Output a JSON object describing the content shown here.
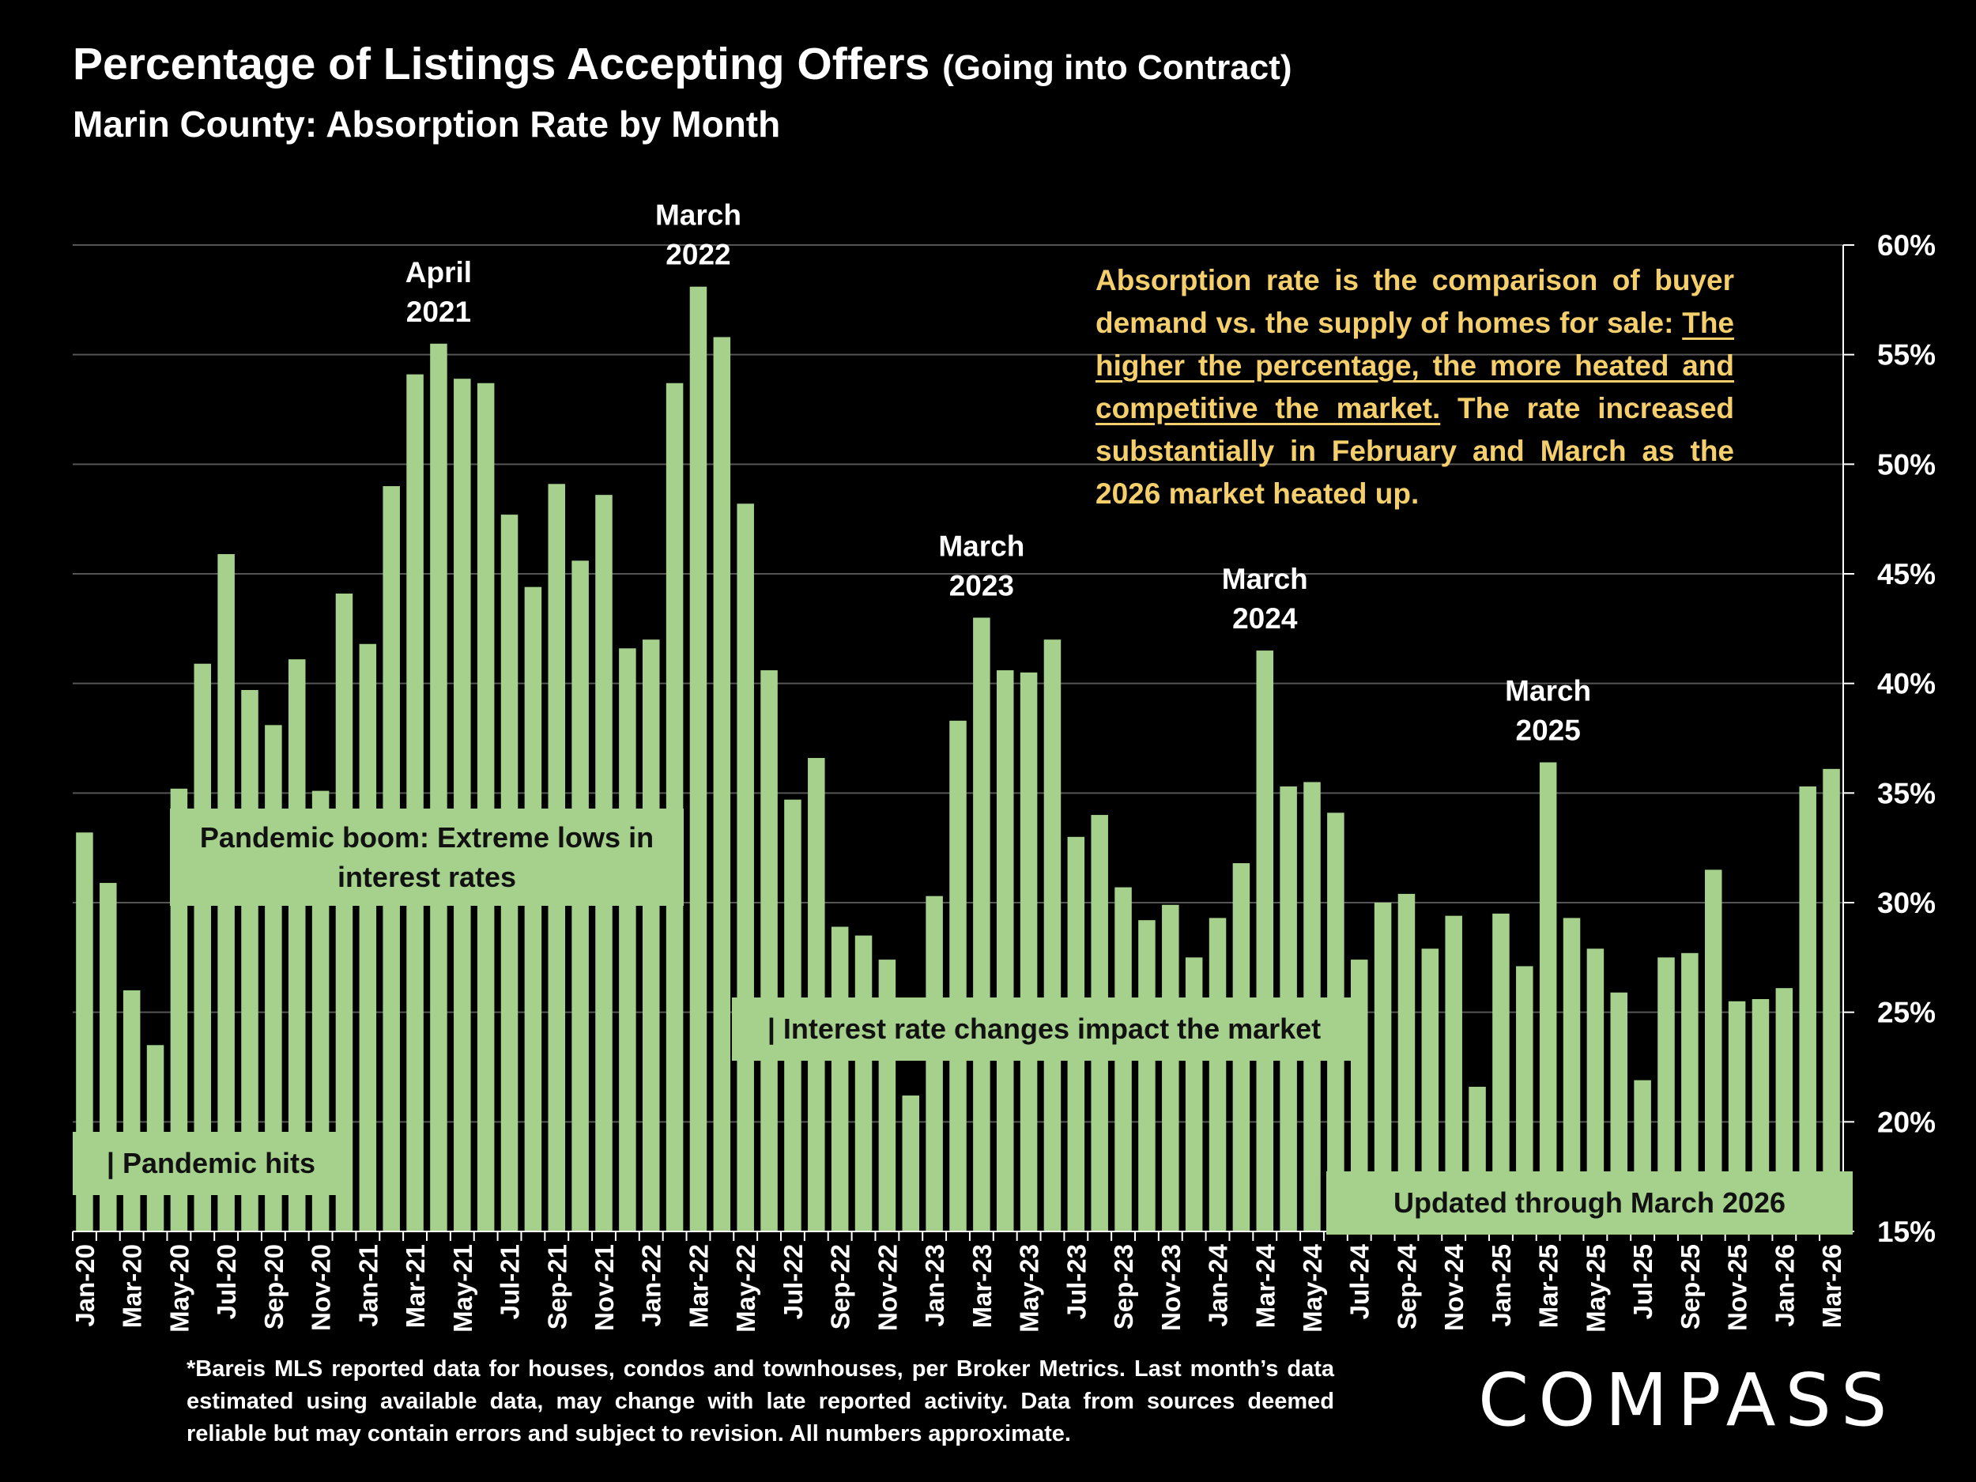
{
  "header": {
    "title_main": "Percentage of Listings Accepting Offers",
    "title_paren": "(Going into Contract)",
    "subtitle": "Marin County:  Absorption Rate by Month"
  },
  "note": {
    "part1": "Absorption rate is the comparison of buyer demand vs. the supply of homes for sale: ",
    "underlined": "The higher the percentage, the more heated and competitive the market.",
    "part2": " The rate increased substantially in February and March as the 2026 market heated up."
  },
  "callouts": {
    "pandemic_hits": "| Pandemic hits",
    "pandemic_boom": "Pandemic boom: Extreme lows in interest rates",
    "interest_rate": "| Interest rate changes impact the market",
    "updated": "Updated through March 2026"
  },
  "footnote": "*Bareis MLS reported data for houses, condos and townhouses, per Broker Metrics. Last month’s data estimated using available data, may change with late reported activity. Data from sources deemed reliable but may contain errors and subject to revision. All numbers approximate.",
  "logo": "COMPASS",
  "colors": {
    "bar": "#a6d18d",
    "note": "#f4cf6b",
    "background": "#000000",
    "grid": "#555555"
  },
  "chart_data": {
    "type": "bar",
    "title": "Percentage of Listings Accepting Offers (Going into Contract)",
    "subtitle": "Marin County: Absorption Rate by Month",
    "xlabel": "",
    "ylabel": "",
    "ylim": [
      15,
      60
    ],
    "yticks": [
      "15%",
      "20%",
      "25%",
      "30%",
      "35%",
      "40%",
      "45%",
      "50%",
      "55%",
      "60%"
    ],
    "ytick_values": [
      15,
      20,
      25,
      30,
      35,
      40,
      45,
      50,
      55,
      60
    ],
    "y_axis_side": "right",
    "grid": true,
    "categories": [
      "Jan-20",
      "Feb-20",
      "Mar-20",
      "Apr-20",
      "May-20",
      "Jun-20",
      "Jul-20",
      "Aug-20",
      "Sep-20",
      "Oct-20",
      "Nov-20",
      "Dec-20",
      "Jan-21",
      "Feb-21",
      "Mar-21",
      "Apr-21",
      "May-21",
      "Jun-21",
      "Jul-21",
      "Aug-21",
      "Sep-21",
      "Oct-21",
      "Nov-21",
      "Dec-21",
      "Jan-22",
      "Feb-22",
      "Mar-22",
      "Apr-22",
      "May-22",
      "Jun-22",
      "Jul-22",
      "Aug-22",
      "Sep-22",
      "Oct-22",
      "Nov-22",
      "Dec-22",
      "Jan-23",
      "Feb-23",
      "Mar-23",
      "Apr-23",
      "May-23",
      "Jun-23",
      "Jul-23",
      "Aug-23",
      "Sep-23",
      "Oct-23",
      "Nov-23",
      "Dec-23",
      "Jan-24",
      "Feb-24",
      "Mar-24",
      "Apr-24",
      "May-24",
      "Jun-24",
      "Jul-24",
      "Aug-24",
      "Sep-24",
      "Oct-24",
      "Nov-24",
      "Dec-24",
      "Jan-25",
      "Feb-25",
      "Mar-25",
      "Apr-25",
      "May-25",
      "Jun-25",
      "Jul-25",
      "Aug-25",
      "Sep-25",
      "Oct-25",
      "Nov-25",
      "Dec-25",
      "Jan-26",
      "Feb-26",
      "Mar-26"
    ],
    "tick_labels_shown": [
      "Jan-20",
      "Mar-20",
      "May-20",
      "Jul-20",
      "Sep-20",
      "Nov-20",
      "Jan-21",
      "Mar-21",
      "May-21",
      "Jul-21",
      "Sep-21",
      "Nov-21",
      "Jan-22",
      "Mar-22",
      "May-22",
      "Jul-22",
      "Sep-22",
      "Nov-22",
      "Jan-23",
      "Mar-23",
      "May-23",
      "Jul-23",
      "Sep-23",
      "Nov-23",
      "Jan-24",
      "Mar-24",
      "May-24",
      "Jul-24",
      "Sep-24",
      "Nov-24",
      "Jan-25",
      "Mar-25",
      "May-25",
      "Jul-25",
      "Sep-25",
      "Nov-25",
      "Jan-26",
      "Mar-26"
    ],
    "values": [
      33.2,
      30.9,
      26.0,
      23.5,
      35.2,
      40.9,
      45.9,
      39.7,
      38.1,
      41.1,
      35.1,
      44.1,
      41.8,
      49.0,
      54.1,
      55.5,
      53.9,
      53.7,
      47.7,
      44.4,
      49.1,
      45.6,
      48.6,
      41.6,
      42.0,
      53.7,
      58.1,
      55.8,
      48.2,
      40.6,
      34.7,
      36.6,
      28.9,
      28.5,
      27.4,
      21.2,
      30.3,
      38.3,
      43.0,
      40.6,
      40.5,
      42.0,
      33.0,
      34.0,
      30.7,
      29.2,
      29.9,
      27.5,
      29.3,
      31.8,
      41.5,
      35.3,
      35.5,
      34.1,
      27.4,
      30.0,
      30.4,
      27.9,
      29.4,
      21.6,
      29.5,
      27.1,
      36.4,
      29.3,
      27.9,
      25.9,
      21.9,
      27.5,
      27.7,
      31.5,
      25.5,
      25.6,
      26.1,
      35.3,
      36.1
    ],
    "annotations": [
      {
        "category": "Apr-21",
        "lines": [
          "April",
          "2021"
        ]
      },
      {
        "category": "Mar-22",
        "lines": [
          "March",
          "2022"
        ]
      },
      {
        "category": "Mar-23",
        "lines": [
          "March",
          "2023"
        ]
      },
      {
        "category": "Mar-24",
        "lines": [
          "March",
          "2024"
        ]
      },
      {
        "category": "Mar-25",
        "lines": [
          "March",
          "2025"
        ]
      }
    ]
  }
}
